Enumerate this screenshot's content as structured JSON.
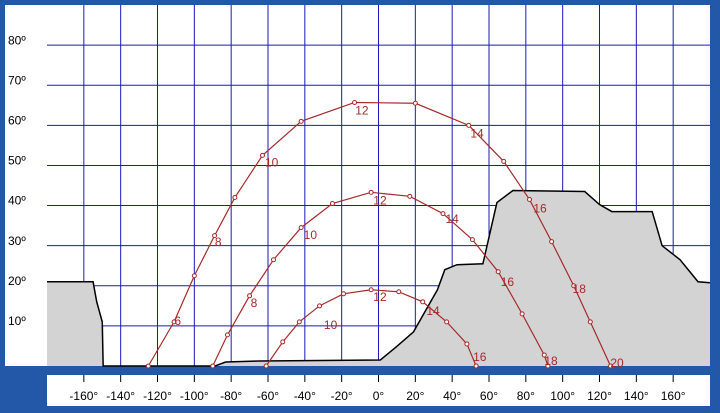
{
  "chart_data": {
    "type": "line",
    "xlim": [
      -180,
      180
    ],
    "ylim": [
      0,
      90
    ],
    "xticks": [
      {
        "value": -160,
        "label": "-160°"
      },
      {
        "value": -140,
        "label": "-140°"
      },
      {
        "value": -120,
        "label": "-120°"
      },
      {
        "value": -100,
        "label": "-100°"
      },
      {
        "value": -80,
        "label": "-80°"
      },
      {
        "value": -60,
        "label": "-60°"
      },
      {
        "value": -40,
        "label": "-40°"
      },
      {
        "value": -20,
        "label": "-20°"
      },
      {
        "value": 0,
        "label": "0°"
      },
      {
        "value": 20,
        "label": "20°"
      },
      {
        "value": 40,
        "label": "40°"
      },
      {
        "value": 60,
        "label": "60°"
      },
      {
        "value": 80,
        "label": "80°"
      },
      {
        "value": 100,
        "label": "100°"
      },
      {
        "value": 120,
        "label": "120°"
      },
      {
        "value": 140,
        "label": "140°"
      },
      {
        "value": 160,
        "label": "160°"
      }
    ],
    "yticks": [
      {
        "value": 10,
        "label": "10º"
      },
      {
        "value": 20,
        "label": "20º"
      },
      {
        "value": 30,
        "label": "30º"
      },
      {
        "value": 40,
        "label": "40º"
      },
      {
        "value": 50,
        "label": "50º"
      },
      {
        "value": 60,
        "label": "60º"
      },
      {
        "value": 70,
        "label": "70º"
      },
      {
        "value": 80,
        "label": "80º"
      }
    ],
    "grid": true,
    "grid_color": "#1a1ab8",
    "series": [
      {
        "color": "#a52a2a",
        "x": [
          -125,
          -111,
          -100,
          -89,
          -78,
          -63,
          -42,
          -13,
          20,
          49,
          68,
          82,
          94,
          106,
          115,
          126
        ],
        "values": [
          0,
          11,
          22.5,
          32.5,
          42,
          52.5,
          61,
          65.7,
          65.5,
          60,
          51,
          41.5,
          31,
          20,
          11,
          0
        ]
      },
      {
        "color": "#a52a2a",
        "x": [
          -90,
          -82,
          -70,
          -57,
          -42,
          -25,
          -4,
          17,
          35,
          51,
          65,
          78,
          90,
          92
        ],
        "values": [
          0,
          7.75,
          17.5,
          26.5,
          34.5,
          40.5,
          43.3,
          42.3,
          38,
          31.5,
          23.5,
          13,
          2.75,
          0
        ]
      },
      {
        "color": "#a52a2a",
        "x": [
          -61,
          -52,
          -43,
          -32,
          -19,
          -4,
          11,
          24,
          37,
          48,
          53
        ],
        "values": [
          0,
          6,
          11,
          15,
          18,
          19,
          18.5,
          16,
          11,
          5.5,
          0
        ]
      }
    ],
    "horizon": {
      "color": "#d3d3d3",
      "x": [
        -180,
        -155,
        -153,
        -150,
        -149.5,
        -88.7,
        -83,
        -64,
        1,
        9.6,
        19,
        32,
        36,
        42.6,
        56.7,
        64.3,
        73,
        112,
        120,
        126.7,
        148.6,
        154,
        163.7,
        173.5,
        180
      ],
      "values": [
        21,
        21,
        16,
        11,
        0,
        0,
        1,
        1.25,
        1.5,
        4.75,
        8.5,
        19,
        24,
        25.25,
        25.5,
        40.75,
        43.75,
        43.5,
        40.25,
        38.5,
        38.5,
        30,
        26.5,
        21,
        20.75
      ]
    },
    "annotations": [
      {
        "text": "6",
        "x": -109,
        "y": 11
      },
      {
        "text": "8",
        "x": -87,
        "y": 30.7
      },
      {
        "text": "10",
        "x": -58,
        "y": 50.5
      },
      {
        "text": "12",
        "x": -9,
        "y": 63.5
      },
      {
        "text": "14",
        "x": 53.5,
        "y": 57.7
      },
      {
        "text": "16",
        "x": 87.7,
        "y": 39
      },
      {
        "text": "18",
        "x": 109,
        "y": 19
      },
      {
        "text": "20",
        "x": 129.5,
        "y": 0.5
      },
      {
        "text": "8",
        "x": -67.6,
        "y": 15.5
      },
      {
        "text": "10",
        "x": -37,
        "y": 32.5
      },
      {
        "text": "12",
        "x": 0.8,
        "y": 41
      },
      {
        "text": "14",
        "x": 40,
        "y": 36.5
      },
      {
        "text": "16",
        "x": 70,
        "y": 20.75
      },
      {
        "text": "18",
        "x": 93.7,
        "y": 1
      },
      {
        "text": "10",
        "x": -26,
        "y": 10
      },
      {
        "text": "12",
        "x": 0.8,
        "y": 17
      },
      {
        "text": "14",
        "x": 29.6,
        "y": 13.5
      },
      {
        "text": "16",
        "x": 55,
        "y": 2
      }
    ]
  }
}
